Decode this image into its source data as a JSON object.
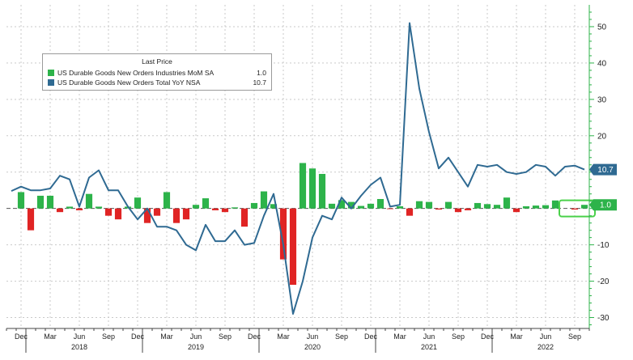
{
  "chart_data": {
    "type": "bar+line",
    "x_months": [
      "Nov 2017",
      "Dec 2017",
      "Jan 2018",
      "Feb 2018",
      "Mar 2018",
      "Apr 2018",
      "May 2018",
      "Jun 2018",
      "Jul 2018",
      "Aug 2018",
      "Sep 2018",
      "Oct 2018",
      "Nov 2018",
      "Dec 2018",
      "Jan 2019",
      "Feb 2019",
      "Mar 2019",
      "Apr 2019",
      "May 2019",
      "Jun 2019",
      "Jul 2019",
      "Aug 2019",
      "Sep 2019",
      "Oct 2019",
      "Nov 2019",
      "Dec 2019",
      "Jan 2020",
      "Feb 2020",
      "Mar 2020",
      "Apr 2020",
      "May 2020",
      "Jun 2020",
      "Jul 2020",
      "Aug 2020",
      "Sep 2020",
      "Oct 2020",
      "Nov 2020",
      "Dec 2020",
      "Jan 2021",
      "Feb 2021",
      "Mar 2021",
      "Apr 2021",
      "May 2021",
      "Jun 2021",
      "Jul 2021",
      "Aug 2021",
      "Sep 2021",
      "Oct 2021",
      "Nov 2021",
      "Dec 2021",
      "Jan 2022",
      "Feb 2022",
      "Mar 2022",
      "Apr 2022",
      "May 2022",
      "Jun 2022",
      "Jul 2022",
      "Aug 2022",
      "Sep 2022",
      "Oct 2022"
    ],
    "series": [
      {
        "name": "US Durable Goods New Orders Industries MoM SA",
        "type": "bar",
        "color_pos": "#2db34a",
        "color_neg": "#e02424",
        "values": [
          null,
          4.5,
          -6.0,
          3.5,
          3.5,
          -1.0,
          0.5,
          -0.5,
          4.0,
          0.5,
          -2.0,
          -3.0,
          0.5,
          3.0,
          -4.0,
          -2.0,
          4.5,
          -4.0,
          -3.0,
          1.0,
          2.8,
          -0.5,
          -1.0,
          0.3,
          -5.0,
          1.5,
          4.7,
          1.2,
          -14.0,
          -21.0,
          12.5,
          11.0,
          9.5,
          1.3,
          2.3,
          1.8,
          0.7,
          1.3,
          2.6,
          -0.1,
          0.6,
          -2.0,
          2.0,
          1.8,
          -0.3,
          1.8,
          -1.0,
          -0.5,
          1.5,
          1.2,
          1.0,
          3.0,
          -1.0,
          0.6,
          0.8,
          0.9,
          2.2,
          null,
          -0.3,
          1.0
        ]
      },
      {
        "name": "US Durable Goods New Orders Total YoY NSA",
        "type": "line",
        "color": "#2f6a92",
        "values": [
          4.8,
          6.0,
          5.0,
          5.0,
          5.5,
          9.0,
          8.0,
          0.5,
          8.5,
          10.5,
          5.0,
          5.0,
          0.5,
          -3.0,
          0.0,
          -5.0,
          -5.0,
          -6.0,
          -10.0,
          -11.5,
          -4.5,
          -9.0,
          -9.0,
          -6.0,
          -10.0,
          -9.5,
          -2.0,
          4.0,
          -10.0,
          -29.0,
          -20.0,
          -8.0,
          -2.0,
          -3.0,
          3.0,
          0.0,
          3.5,
          6.5,
          8.5,
          0.5,
          1.0,
          51.0,
          33.0,
          21.0,
          11.0,
          14.0,
          10.0,
          6.0,
          12.0,
          11.5,
          12.0,
          10.0,
          9.5,
          10.0,
          12.0,
          11.5,
          9.0,
          11.5,
          11.8,
          10.7
        ]
      }
    ],
    "legend": {
      "header": "Last Price",
      "values": [
        "1.0",
        "10.7"
      ],
      "placement": "top-left"
    },
    "y_ticks": [
      50,
      40,
      30,
      20,
      10,
      0,
      -10,
      -20,
      -30
    ],
    "y_tick_labels": [
      "50",
      "40",
      "30",
      "20",
      "10",
      "0",
      "-10",
      "-20",
      "-30"
    ],
    "ylim": [
      -33,
      56
    ],
    "x_tick_labels": [
      {
        "label": "Dec",
        "month": "Dec 2017"
      },
      {
        "label": "Mar",
        "month": "Mar 2018"
      },
      {
        "label": "Jun",
        "month": "Jun 2018"
      },
      {
        "label": "Sep",
        "month": "Sep 2018"
      },
      {
        "label": "Dec",
        "month": "Dec 2018"
      },
      {
        "label": "Mar",
        "month": "Mar 2019"
      },
      {
        "label": "Jun",
        "month": "Jun 2019"
      },
      {
        "label": "Sep",
        "month": "Sep 2019"
      },
      {
        "label": "Dec",
        "month": "Dec 2019"
      },
      {
        "label": "Mar",
        "month": "Mar 2020"
      },
      {
        "label": "Jun",
        "month": "Jun 2020"
      },
      {
        "label": "Sep",
        "month": "Sep 2020"
      },
      {
        "label": "Dec",
        "month": "Dec 2020"
      },
      {
        "label": "Mar",
        "month": "Mar 2021"
      },
      {
        "label": "Jun",
        "month": "Jun 2021"
      },
      {
        "label": "Sep",
        "month": "Sep 2021"
      },
      {
        "label": "Dec",
        "month": "Dec 2021"
      },
      {
        "label": "Mar",
        "month": "Mar 2022"
      },
      {
        "label": "Jun",
        "month": "Jun 2022"
      },
      {
        "label": "Sep",
        "month": "Sep 2022"
      }
    ],
    "x_year_labels": [
      {
        "label": "2018",
        "month": "Jun 2018"
      },
      {
        "label": "2019",
        "month": "Jun 2019"
      },
      {
        "label": "2020",
        "month": "Jun 2020"
      },
      {
        "label": "2021",
        "month": "Jun 2021"
      },
      {
        "label": "2022",
        "month": "Jun 2022"
      }
    ],
    "last_value_tags": [
      {
        "text": "10.7",
        "value": 10.7,
        "color": "#2f6a92"
      },
      {
        "text": "1.0",
        "value": 1.0,
        "color": "#2db34a"
      }
    ],
    "grid": true
  }
}
